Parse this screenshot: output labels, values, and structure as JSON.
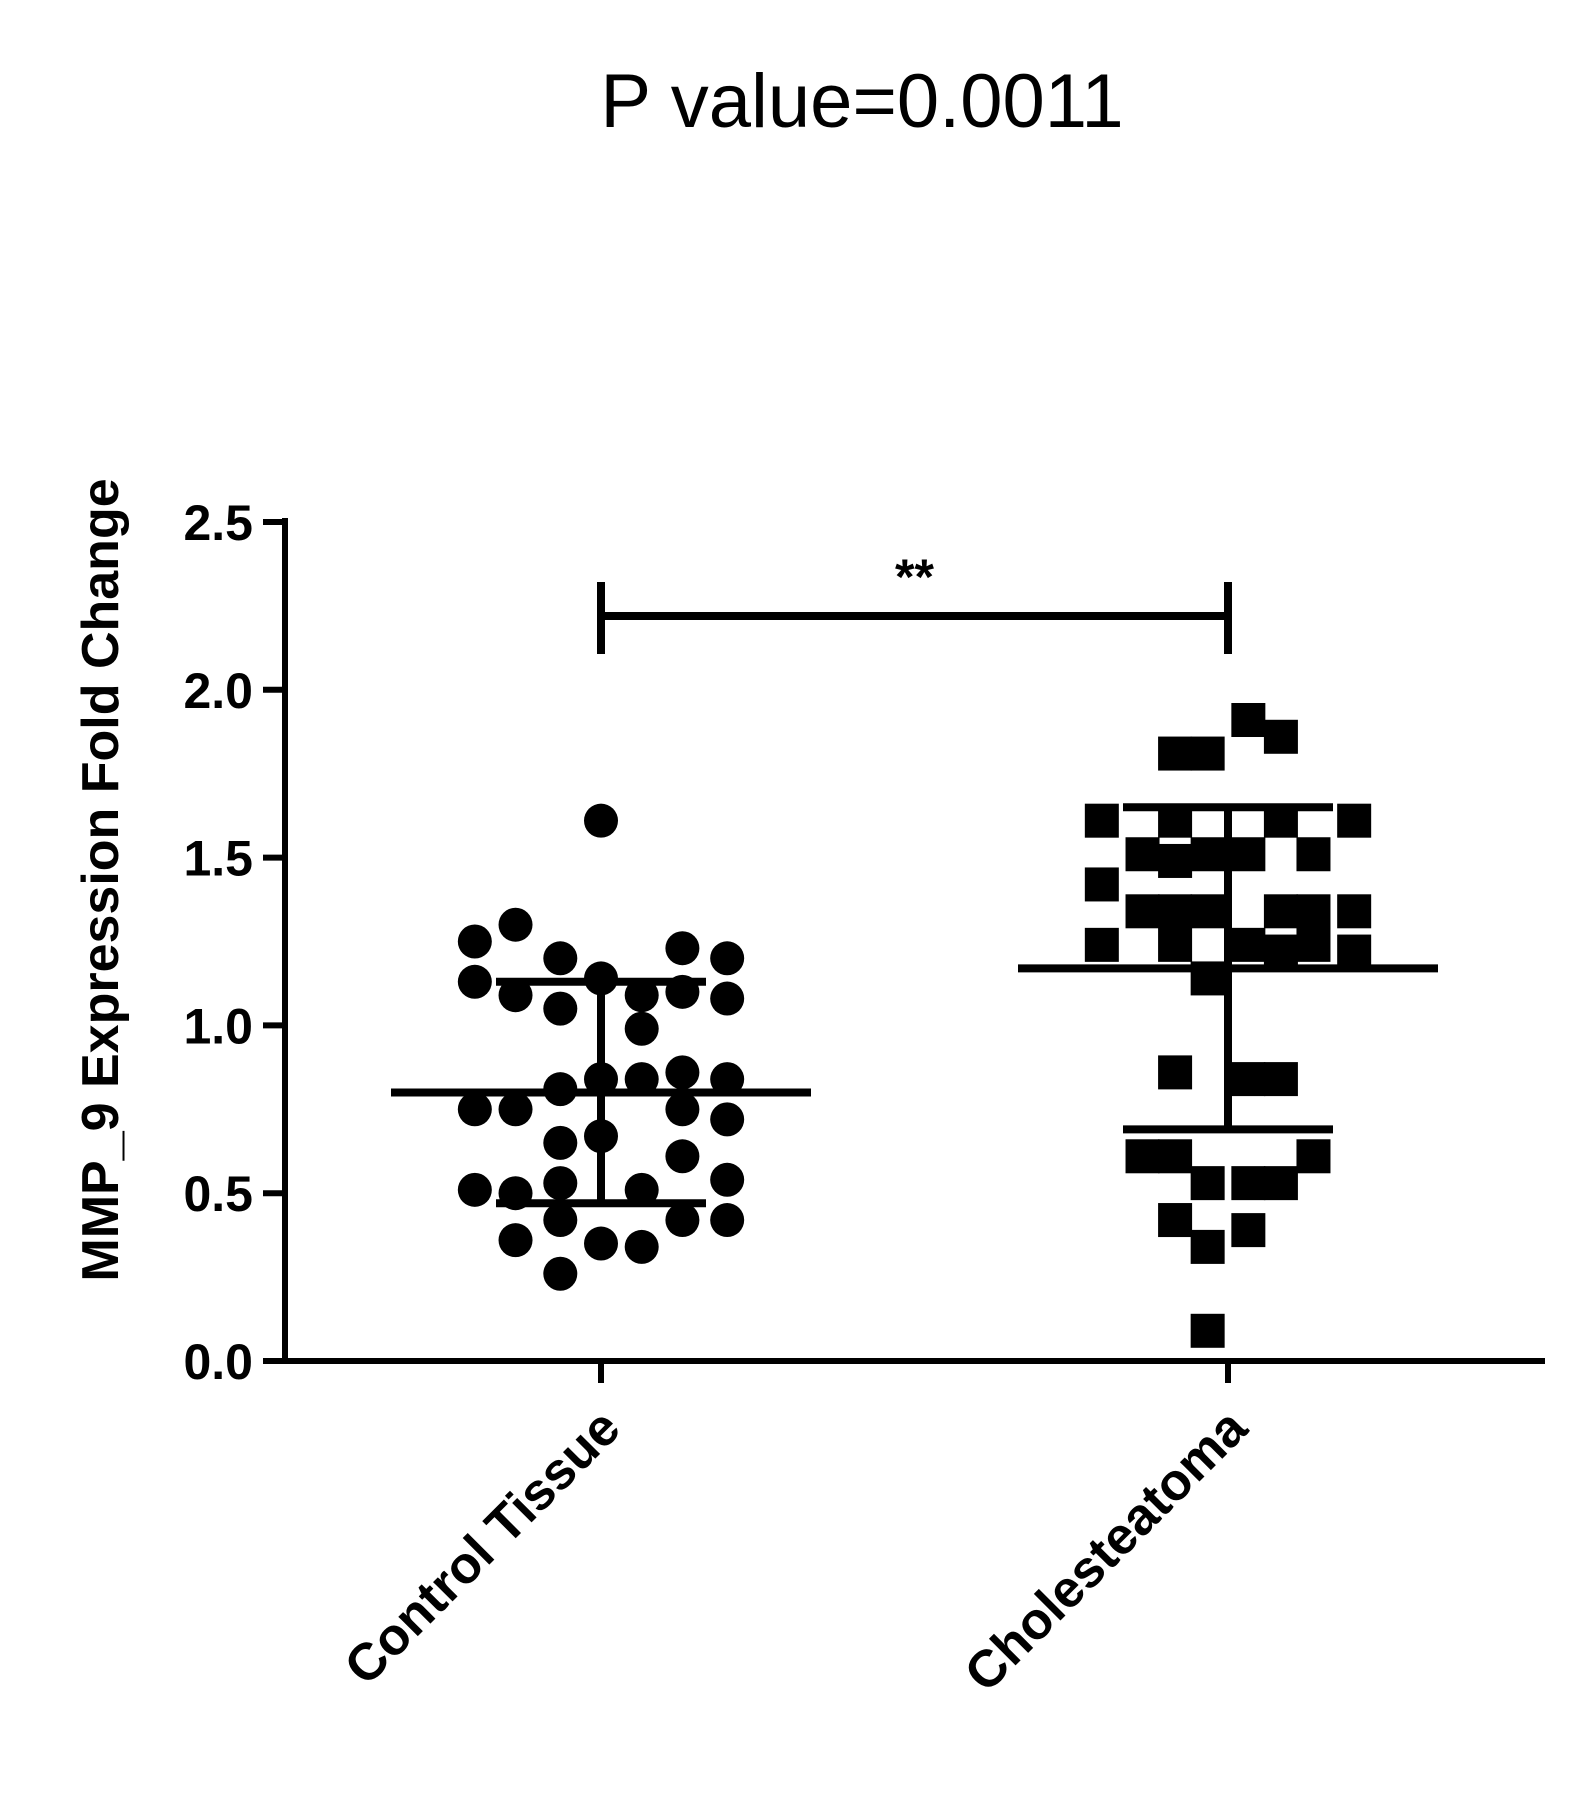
{
  "chart_data": {
    "type": "scatter",
    "title": "P value=0.0011",
    "xlabel": "",
    "ylabel": "MMP_9 Expression Fold Change",
    "ylim": [
      0,
      2.5
    ],
    "yticks": [
      "0.0",
      "0.5",
      "1.0",
      "1.5",
      "2.0",
      "2.5"
    ],
    "categories": [
      "Control Tissue",
      "Cholesteatoma"
    ],
    "significance": {
      "label": "**",
      "y": 2.22
    },
    "series": [
      {
        "category": "Control Tissue",
        "marker": "circle",
        "color": "#000000",
        "mean": 0.8,
        "sd_upper": 1.13,
        "sd_lower": 0.47,
        "points": [
          {
            "x": -0.31,
            "y": 1.25
          },
          {
            "x": -0.21,
            "y": 1.3
          },
          {
            "x": -0.1,
            "y": 1.2
          },
          {
            "x": 0.0,
            "y": 1.14
          },
          {
            "x": 0.1,
            "y": 1.09
          },
          {
            "x": 0.2,
            "y": 1.23
          },
          {
            "x": 0.31,
            "y": 1.2
          },
          {
            "x": -0.31,
            "y": 1.13
          },
          {
            "x": -0.21,
            "y": 1.09
          },
          {
            "x": -0.1,
            "y": 1.05
          },
          {
            "x": 0.1,
            "y": 0.99
          },
          {
            "x": 0.2,
            "y": 1.1
          },
          {
            "x": 0.31,
            "y": 1.08
          },
          {
            "x": 0.0,
            "y": 1.61
          },
          {
            "x": -0.31,
            "y": 0.75
          },
          {
            "x": -0.21,
            "y": 0.75
          },
          {
            "x": -0.1,
            "y": 0.81
          },
          {
            "x": 0.0,
            "y": 0.84
          },
          {
            "x": 0.1,
            "y": 0.84
          },
          {
            "x": 0.2,
            "y": 0.86
          },
          {
            "x": 0.31,
            "y": 0.84
          },
          {
            "x": -0.1,
            "y": 0.65
          },
          {
            "x": 0.0,
            "y": 0.67
          },
          {
            "x": 0.2,
            "y": 0.75
          },
          {
            "x": 0.31,
            "y": 0.72
          },
          {
            "x": 0.2,
            "y": 0.61
          },
          {
            "x": -0.31,
            "y": 0.51
          },
          {
            "x": -0.21,
            "y": 0.5
          },
          {
            "x": -0.1,
            "y": 0.53
          },
          {
            "x": 0.1,
            "y": 0.51
          },
          {
            "x": 0.31,
            "y": 0.54
          },
          {
            "x": -0.1,
            "y": 0.42
          },
          {
            "x": 0.2,
            "y": 0.42
          },
          {
            "x": 0.31,
            "y": 0.42
          },
          {
            "x": -0.21,
            "y": 0.36
          },
          {
            "x": 0.0,
            "y": 0.35
          },
          {
            "x": 0.1,
            "y": 0.34
          },
          {
            "x": -0.1,
            "y": 0.26
          }
        ]
      },
      {
        "category": "Cholesteatoma",
        "marker": "square",
        "color": "#000000",
        "mean": 1.17,
        "sd_upper": 1.65,
        "sd_lower": 0.69,
        "points": [
          {
            "x": -0.31,
            "y": 1.61
          },
          {
            "x": -0.21,
            "y": 1.51
          },
          {
            "x": -0.13,
            "y": 1.81
          },
          {
            "x": -0.05,
            "y": 1.81
          },
          {
            "x": 0.05,
            "y": 1.91
          },
          {
            "x": 0.13,
            "y": 1.86
          },
          {
            "x": 0.21,
            "y": 1.51
          },
          {
            "x": 0.31,
            "y": 1.61
          },
          {
            "x": -0.13,
            "y": 1.61
          },
          {
            "x": -0.13,
            "y": 1.49
          },
          {
            "x": -0.05,
            "y": 1.51
          },
          {
            "x": 0.05,
            "y": 1.51
          },
          {
            "x": 0.13,
            "y": 1.61
          },
          {
            "x": -0.31,
            "y": 1.42
          },
          {
            "x": -0.21,
            "y": 1.34
          },
          {
            "x": -0.13,
            "y": 1.34
          },
          {
            "x": -0.05,
            "y": 1.34
          },
          {
            "x": 0.13,
            "y": 1.34
          },
          {
            "x": 0.21,
            "y": 1.34
          },
          {
            "x": 0.31,
            "y": 1.34
          },
          {
            "x": -0.31,
            "y": 1.24
          },
          {
            "x": -0.13,
            "y": 1.24
          },
          {
            "x": 0.05,
            "y": 1.24
          },
          {
            "x": 0.13,
            "y": 1.22
          },
          {
            "x": 0.21,
            "y": 1.24
          },
          {
            "x": 0.31,
            "y": 1.22
          },
          {
            "x": -0.05,
            "y": 1.14
          },
          {
            "x": -0.13,
            "y": 0.86
          },
          {
            "x": 0.05,
            "y": 0.84
          },
          {
            "x": 0.13,
            "y": 0.84
          },
          {
            "x": -0.21,
            "y": 0.61
          },
          {
            "x": -0.13,
            "y": 0.61
          },
          {
            "x": -0.05,
            "y": 0.53
          },
          {
            "x": 0.05,
            "y": 0.53
          },
          {
            "x": 0.13,
            "y": 0.53
          },
          {
            "x": 0.21,
            "y": 0.61
          },
          {
            "x": -0.13,
            "y": 0.42
          },
          {
            "x": -0.05,
            "y": 0.34
          },
          {
            "x": 0.05,
            "y": 0.39
          },
          {
            "x": -0.05,
            "y": 0.09
          }
        ]
      }
    ]
  }
}
